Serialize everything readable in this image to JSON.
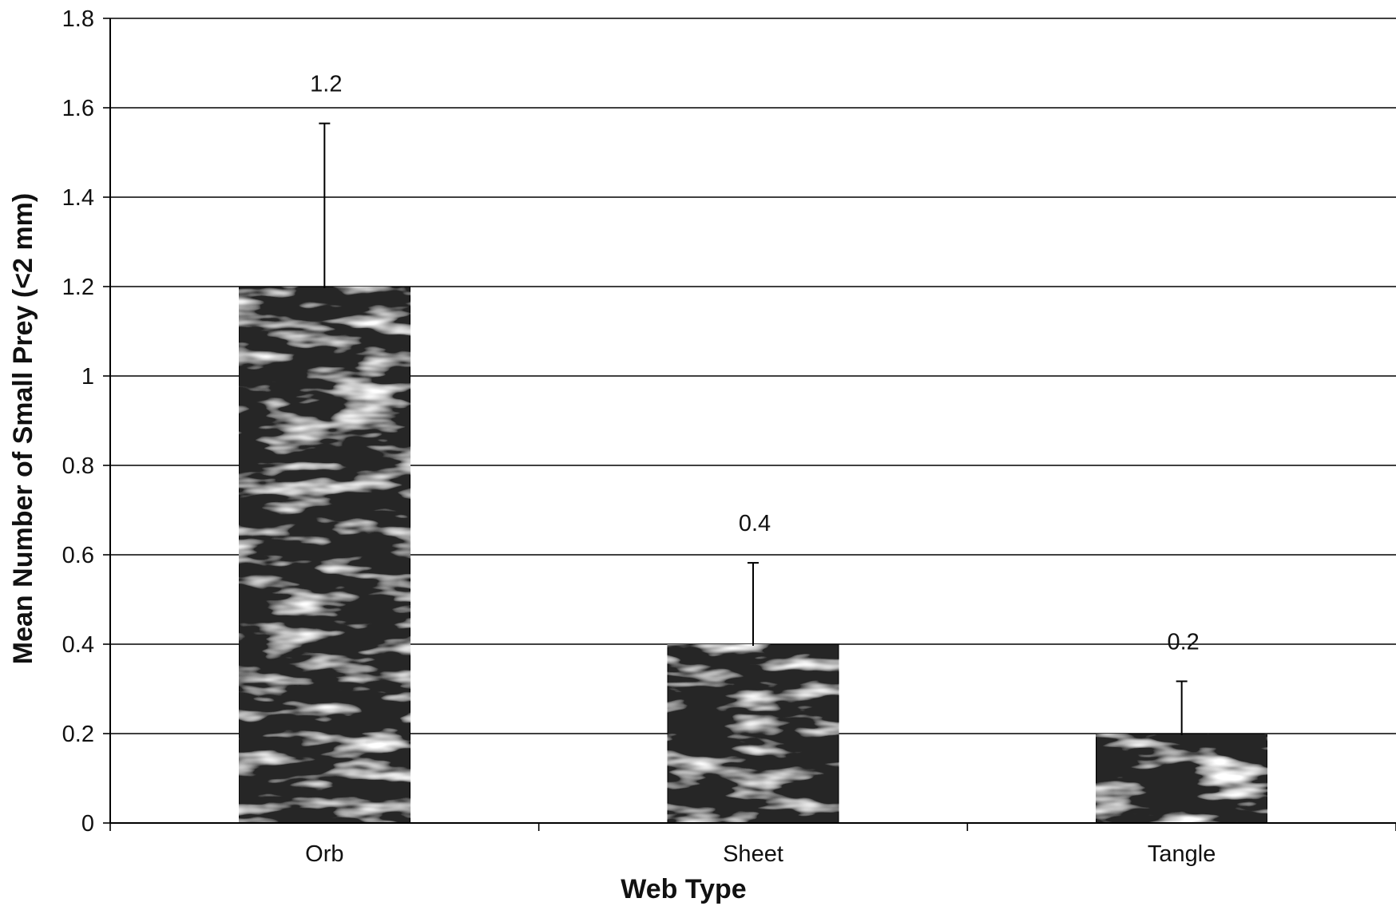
{
  "chart_data": {
    "type": "bar",
    "title": "",
    "xlabel": "Web Type",
    "ylabel": "Mean Number of Small Prey (<2 mm)",
    "categories": [
      "Orb",
      "Sheet",
      "Tangle"
    ],
    "values": [
      1.2,
      0.4,
      0.2
    ],
    "error_upper": [
      1.565,
      0.582,
      0.317
    ],
    "data_labels": [
      "1.2",
      "0.4",
      "0.2"
    ],
    "ylim": [
      0,
      1.8
    ],
    "yticks": [
      0,
      0.2,
      0.4,
      0.6,
      0.8,
      1,
      1.2,
      1.4,
      1.6,
      1.8
    ],
    "ytick_labels": [
      "0",
      "0.2",
      "0.4",
      "0.6",
      "0.8",
      "1",
      "1.2",
      "1.4",
      "1.6",
      "1.8"
    ],
    "grid": true,
    "legend": "none",
    "colors": {
      "bar": "#262626",
      "grid": "#000000",
      "axis": "#000000",
      "background": "#ffffff"
    }
  }
}
